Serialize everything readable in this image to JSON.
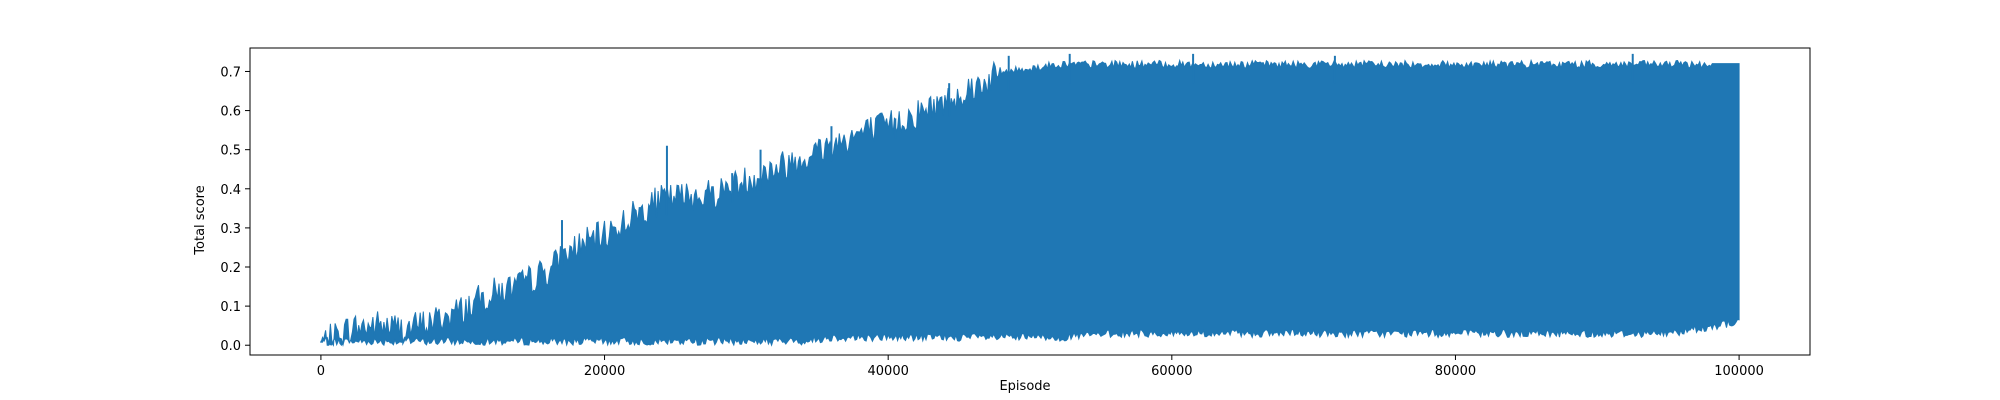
{
  "chart_data": {
    "type": "area",
    "title": "",
    "xlabel": "Episode",
    "ylabel": "Total score",
    "xlim": [
      -5000,
      105000
    ],
    "ylim": [
      -0.025,
      0.76
    ],
    "x_ticks": [
      0,
      20000,
      40000,
      60000,
      80000,
      100000
    ],
    "x_tick_labels": [
      "0",
      "20000",
      "40000",
      "60000",
      "80000",
      "100000"
    ],
    "y_ticks": [
      0.0,
      0.1,
      0.2,
      0.3,
      0.4,
      0.5,
      0.6,
      0.7
    ],
    "y_tick_labels": [
      "0.0",
      "0.1",
      "0.2",
      "0.3",
      "0.4",
      "0.5",
      "0.6",
      "0.7"
    ],
    "grid": false,
    "series": [
      {
        "color": "#1f77b4",
        "x": [
          0,
          2000,
          4000,
          6000,
          8000,
          10000,
          12000,
          14000,
          16000,
          18000,
          20000,
          22000,
          24000,
          26000,
          28000,
          30000,
          32000,
          34000,
          36000,
          38000,
          40000,
          42000,
          44000,
          46000,
          48000,
          50000,
          52000,
          56000,
          60000,
          65000,
          70000,
          75000,
          80000,
          85000,
          90000,
          95000,
          100000
        ],
        "upper_envelope": [
          0.01,
          0.05,
          0.06,
          0.05,
          0.07,
          0.1,
          0.14,
          0.16,
          0.2,
          0.26,
          0.29,
          0.34,
          0.38,
          0.39,
          0.4,
          0.43,
          0.46,
          0.49,
          0.52,
          0.55,
          0.57,
          0.6,
          0.63,
          0.67,
          0.7,
          0.71,
          0.72,
          0.72,
          0.72,
          0.72,
          0.72,
          0.72,
          0.72,
          0.72,
          0.72,
          0.72,
          0.72
        ],
        "lower_envelope": [
          0.0,
          0.0,
          0.0,
          0.0,
          0.0,
          0.0,
          0.0,
          0.0,
          0.0,
          0.0,
          0.0,
          0.0,
          0.0,
          0.0,
          0.0,
          0.0,
          0.0,
          0.0,
          0.01,
          0.01,
          0.01,
          0.01,
          0.01,
          0.01,
          0.01,
          0.01,
          0.01,
          0.02,
          0.02,
          0.02,
          0.02,
          0.02,
          0.02,
          0.02,
          0.02,
          0.02,
          0.05
        ],
        "peaks": [
          {
            "x": 17000,
            "y": 0.32
          },
          {
            "x": 24400,
            "y": 0.51
          },
          {
            "x": 29000,
            "y": 0.44
          },
          {
            "x": 31000,
            "y": 0.5
          },
          {
            "x": 36000,
            "y": 0.56
          },
          {
            "x": 40500,
            "y": 0.58
          },
          {
            "x": 44300,
            "y": 0.67
          },
          {
            "x": 48500,
            "y": 0.74
          },
          {
            "x": 52800,
            "y": 0.745
          },
          {
            "x": 61500,
            "y": 0.745
          },
          {
            "x": 71500,
            "y": 0.74
          },
          {
            "x": 92500,
            "y": 0.745
          }
        ]
      }
    ]
  }
}
